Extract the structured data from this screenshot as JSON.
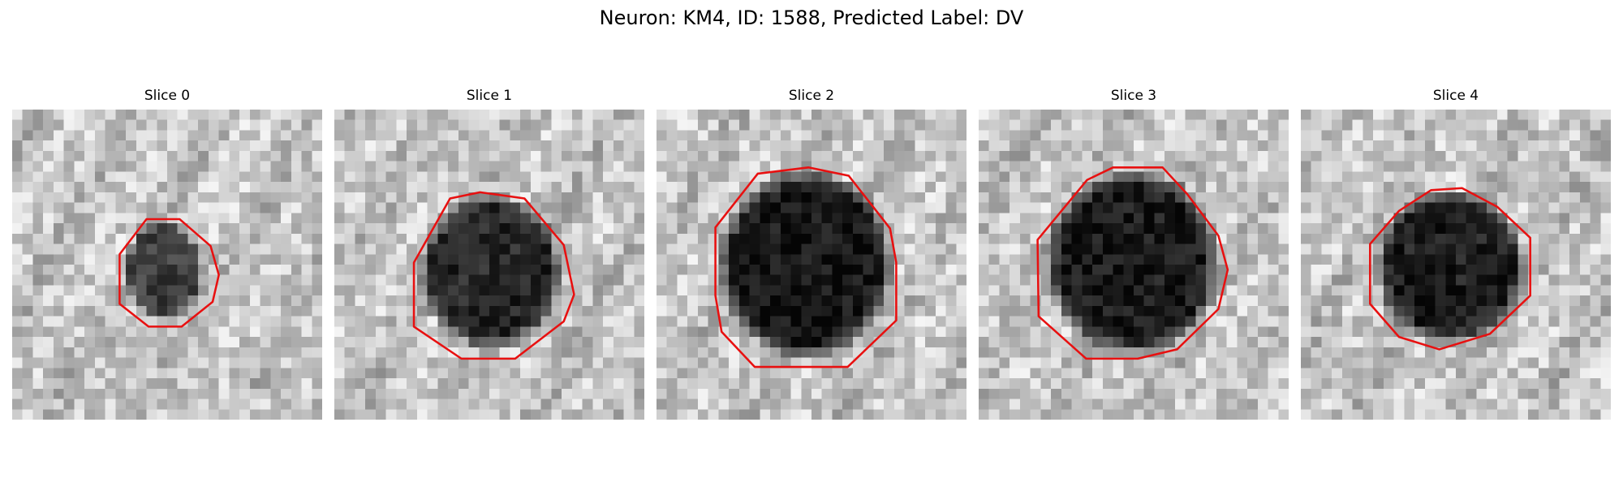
{
  "figure": {
    "title": "Neuron: KM4, ID: 1588, Predicted Label: DV"
  },
  "contour_color": "#e81010",
  "panels": [
    {
      "label": "Slice 0"
    },
    {
      "label": "Slice 1"
    },
    {
      "label": "Slice 2"
    },
    {
      "label": "Slice 3"
    },
    {
      "label": "Slice 4"
    }
  ]
}
